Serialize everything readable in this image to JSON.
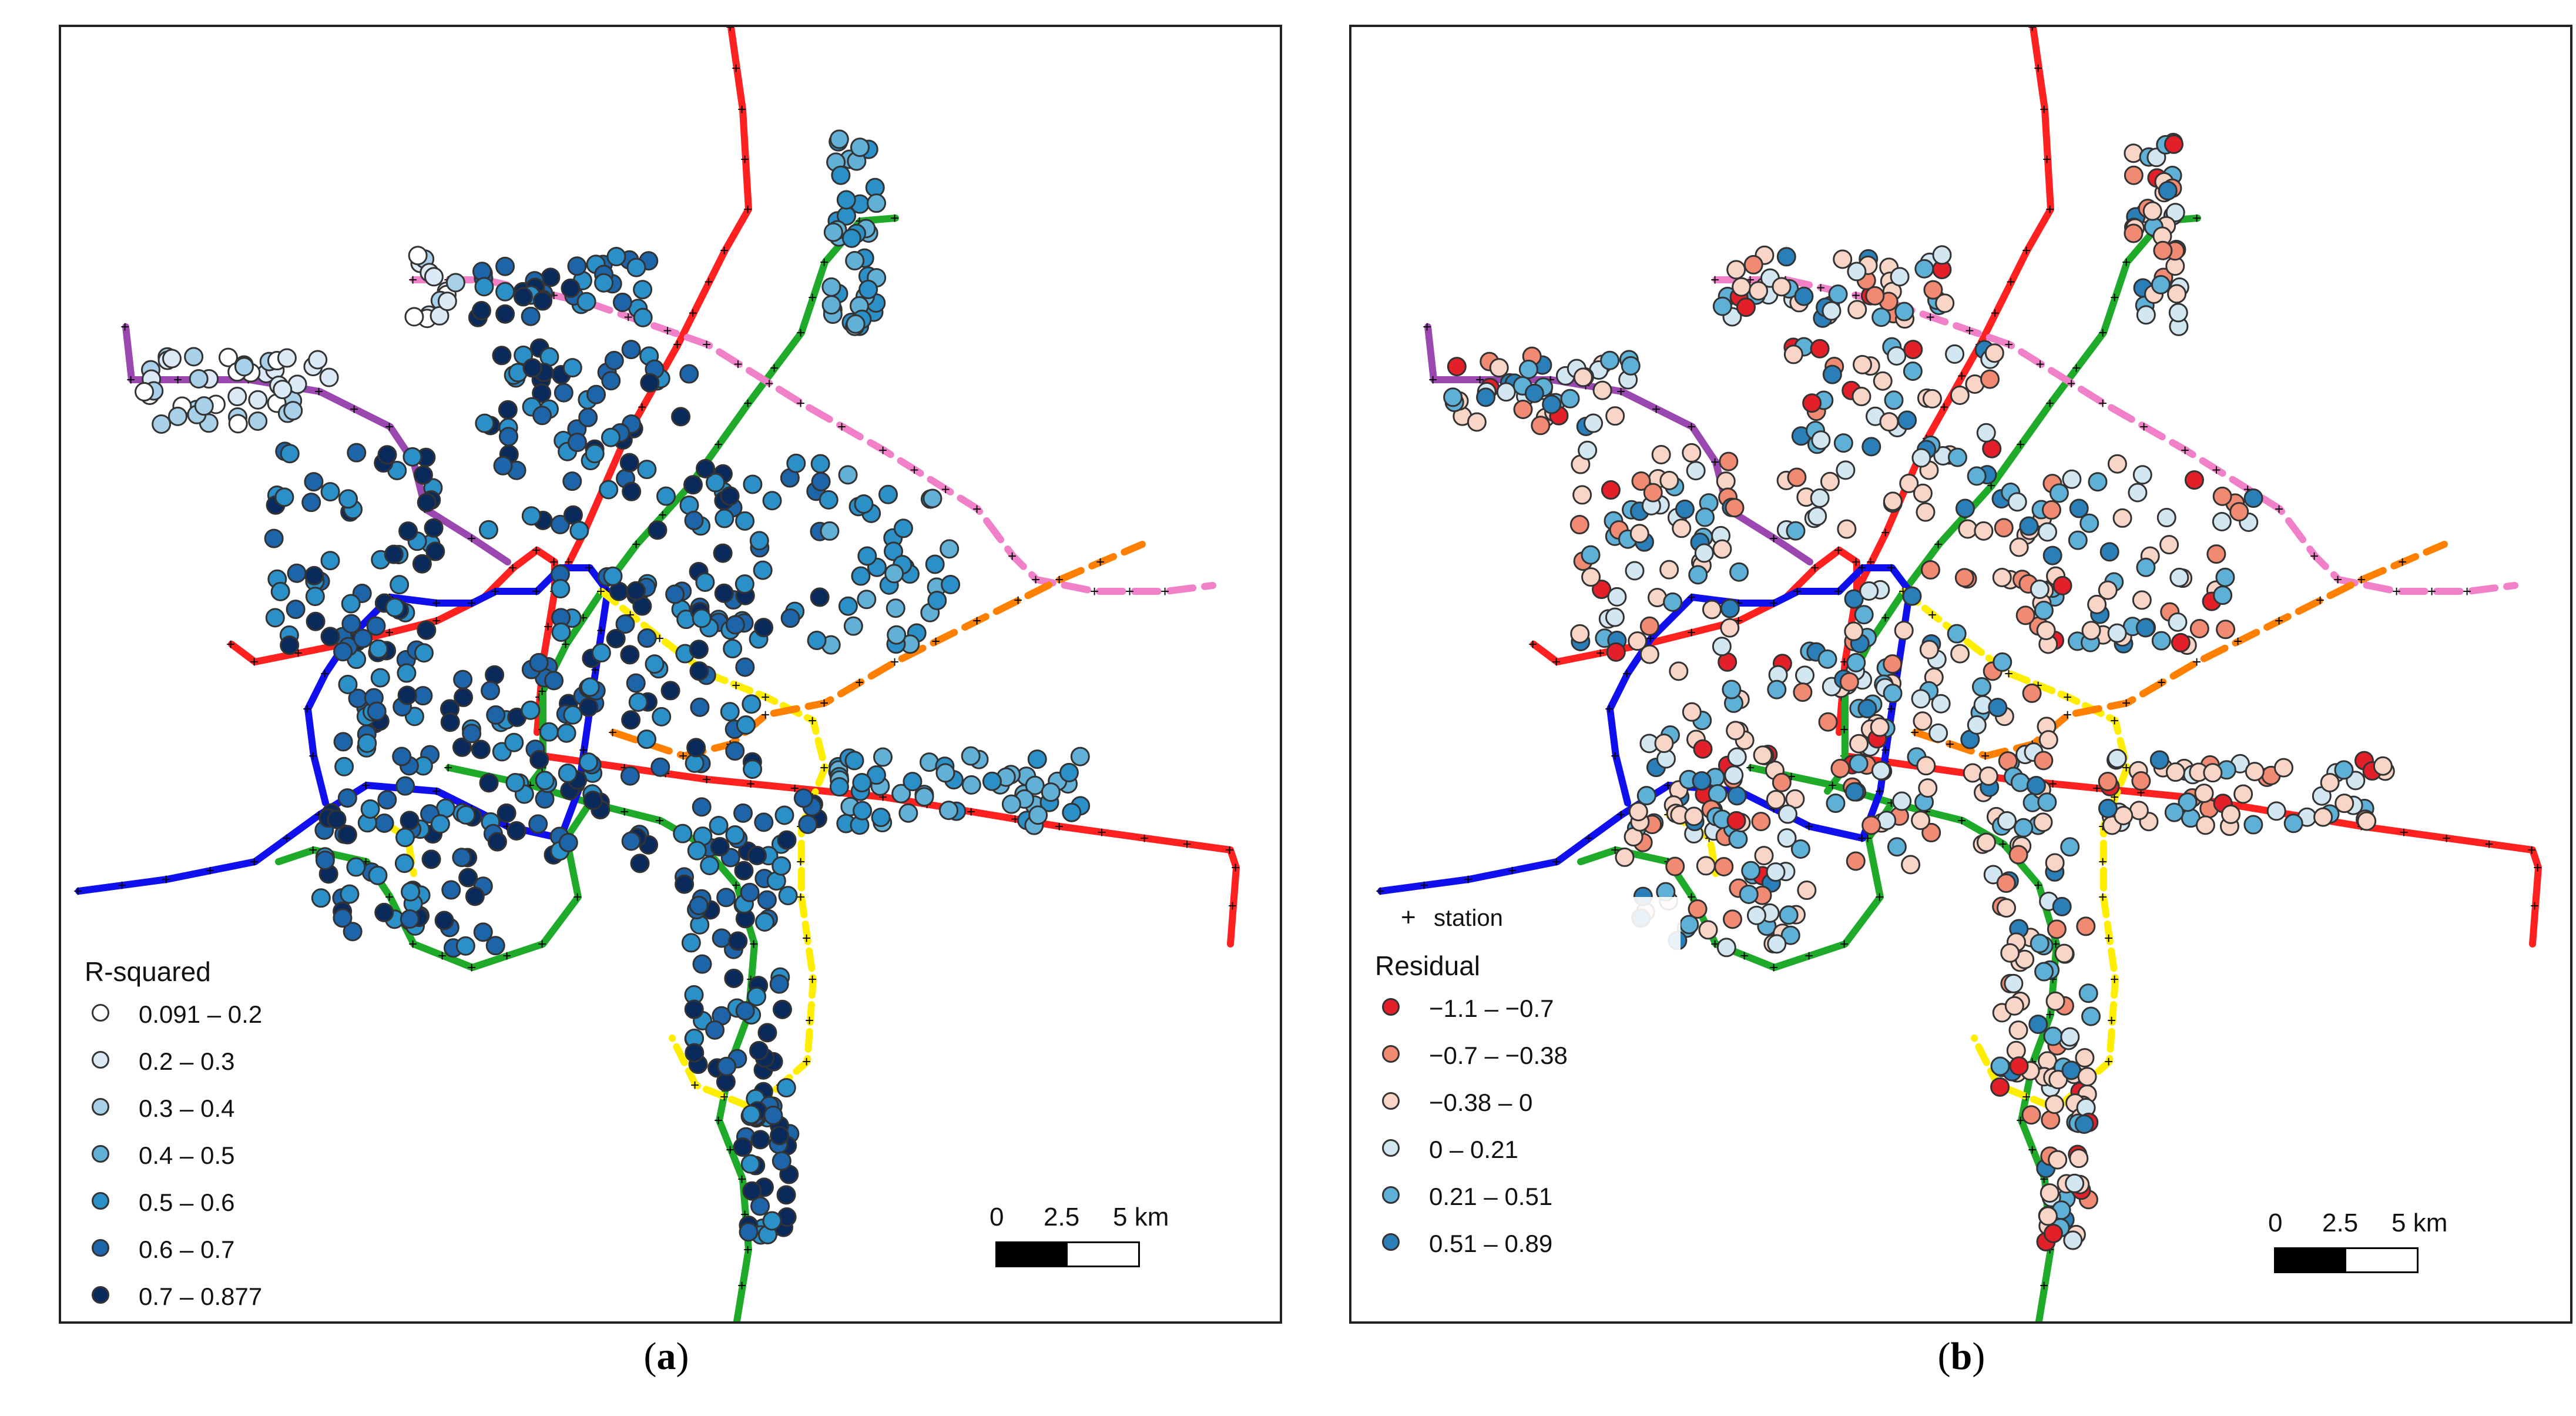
{
  "captions": {
    "a": "a",
    "b": "b"
  },
  "legend_a": {
    "title": "R-squared",
    "classes": [
      {
        "label": "0.091 – 0.2",
        "color": "#ffffff"
      },
      {
        "label": "0.2 – 0.3",
        "color": "#dbeaf6"
      },
      {
        "label": "0.3 – 0.4",
        "color": "#a8d0e8"
      },
      {
        "label": "0.4 – 0.5",
        "color": "#62b0d6"
      },
      {
        "label": "0.5 – 0.6",
        "color": "#2b8fc8"
      },
      {
        "label": "0.6 – 0.7",
        "color": "#1d64a8"
      },
      {
        "label": "0.7 – 0.877",
        "color": "#0b2a5c"
      }
    ]
  },
  "legend_b": {
    "station_label": "station",
    "title": "Residual",
    "classes": [
      {
        "label": "−1.1 – −0.7",
        "color": "#e3202a"
      },
      {
        "label": "−0.7 – −0.38",
        "color": "#f08a72"
      },
      {
        "label": "−0.38 – 0",
        "color": "#f8d5c6"
      },
      {
        "label": "0 – 0.21",
        "color": "#d3e7f3"
      },
      {
        "label": "0.21 – 0.51",
        "color": "#5fb0d6"
      },
      {
        "label": "0.51 – 0.89",
        "color": "#2a7fb8"
      }
    ]
  },
  "scale_bar": {
    "labels": [
      "0",
      "2.5",
      "5 km"
    ]
  },
  "line_colors": {
    "red": "#ff2020",
    "green": "#1faa2a",
    "blue": "#1010ee",
    "pink": "#f080c8",
    "purple": "#9b47b0",
    "yellow": "#ffee00",
    "orange": "#ff7f00"
  }
}
